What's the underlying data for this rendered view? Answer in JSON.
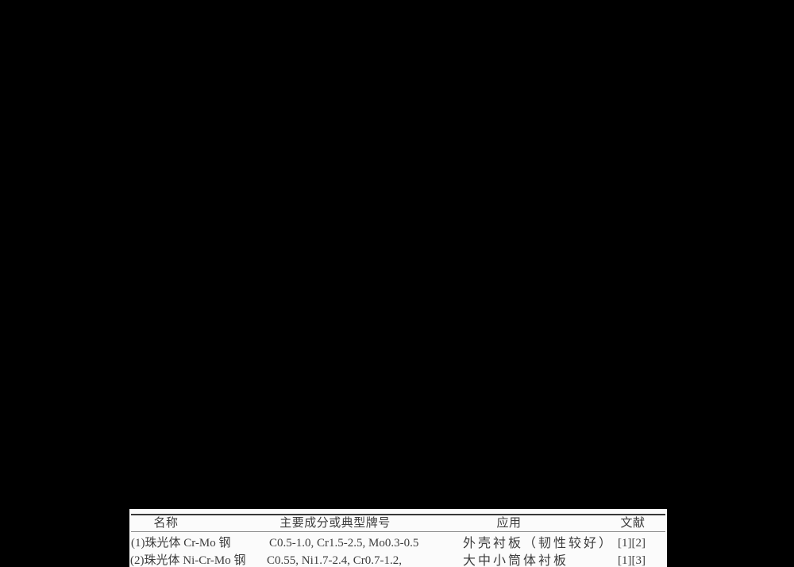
{
  "colors": {
    "bg": "#000000",
    "paper": "#fbfbfb",
    "ink": "#3d3d3d",
    "heavy": "#383838",
    "light": "#8c8c8c"
  },
  "table": {
    "headers": [
      "名称",
      "主要成分或典型牌号",
      "应用",
      "文献"
    ],
    "rows": [
      {
        "name": "(1)珠光体 Cr-Mo 钢",
        "composition": "C0.5-1.0, Cr1.5-2.5, Mo0.3-0.5",
        "application": "外壳衬板（韧性较好）",
        "references": "[1][2]"
      },
      {
        "name": "(2)珠光体 Ni-Cr-Mo 钢",
        "composition": "C0.55, Ni1.7-2.4, Cr0.7-1.2,",
        "application": "大中小筒体衬板",
        "references": "[1][3]"
      }
    ]
  }
}
